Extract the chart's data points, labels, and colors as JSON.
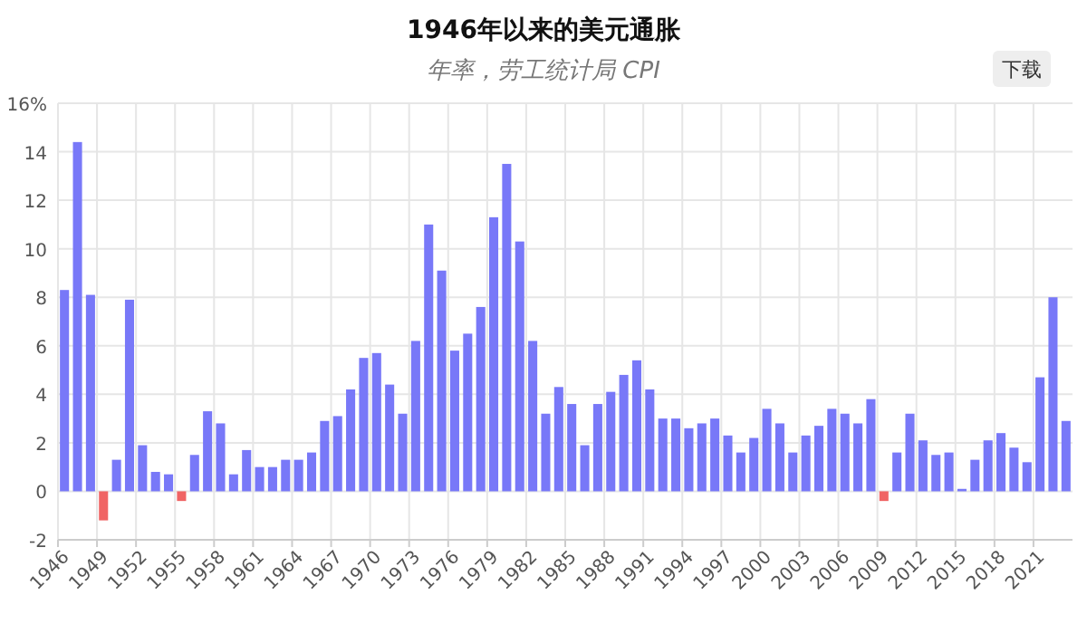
{
  "chart_data": {
    "type": "bar",
    "title": "1946年以来的美元通胀",
    "subtitle": "年率，劳工统计局 CPI",
    "annotations": [
      "下载"
    ],
    "categories": [
      "1946",
      null,
      null,
      "1949",
      null,
      null,
      "1952",
      null,
      null,
      "1955",
      null,
      null,
      "1958",
      null,
      null,
      "1961",
      null,
      null,
      "1964",
      null,
      null,
      "1967",
      null,
      null,
      "1970",
      null,
      null,
      "1973",
      null,
      null,
      "1976",
      null,
      null,
      "1979",
      null,
      null,
      "1982",
      null,
      null,
      "1985",
      null,
      null,
      "1988",
      null,
      null,
      "1991",
      null,
      null,
      "1994",
      null,
      null,
      "1997",
      null,
      null,
      "2000",
      null,
      null,
      "2003",
      null,
      null,
      "2006",
      null,
      null,
      "2009",
      null,
      null,
      "2012",
      null,
      null,
      "2015",
      null,
      null,
      "2018",
      null,
      null,
      "2021",
      null,
      null
    ],
    "values": [
      8.3,
      14.4,
      8.1,
      -1.2,
      1.3,
      7.9,
      1.9,
      0.8,
      0.7,
      -0.4,
      1.5,
      3.3,
      2.8,
      0.7,
      1.7,
      1.0,
      1.0,
      1.3,
      1.3,
      1.6,
      2.9,
      3.1,
      4.2,
      5.5,
      5.7,
      4.4,
      3.2,
      6.2,
      11.0,
      9.1,
      5.8,
      6.5,
      7.6,
      11.3,
      13.5,
      10.3,
      6.2,
      3.2,
      4.3,
      3.6,
      1.9,
      3.6,
      4.1,
      4.8,
      5.4,
      4.2,
      3.0,
      3.0,
      2.6,
      2.8,
      3.0,
      2.3,
      1.6,
      2.2,
      3.4,
      2.8,
      1.6,
      2.3,
      2.7,
      3.4,
      3.2,
      2.8,
      3.8,
      -0.4,
      1.6,
      3.2,
      2.1,
      1.5,
      1.6,
      0.1,
      1.3,
      2.1,
      2.4,
      1.8,
      1.2,
      4.7,
      8.0,
      2.9
    ],
    "colors": [
      "#7878f8",
      "#7878f8",
      "#7878f8",
      "#f06464",
      "#7878f8",
      "#7878f8",
      "#7878f8",
      "#7878f8",
      "#7878f8",
      "#f06464",
      "#7878f8",
      "#7878f8",
      "#7878f8",
      "#7878f8",
      "#7878f8",
      "#7878f8",
      "#7878f8",
      "#7878f8",
      "#7878f8",
      "#7878f8",
      "#7878f8",
      "#7878f8",
      "#7878f8",
      "#7878f8",
      "#7878f8",
      "#7878f8",
      "#7878f8",
      "#7878f8",
      "#7878f8",
      "#7878f8",
      "#7878f8",
      "#7878f8",
      "#7878f8",
      "#7878f8",
      "#7878f8",
      "#7878f8",
      "#7878f8",
      "#7878f8",
      "#7878f8",
      "#7878f8",
      "#7878f8",
      "#7878f8",
      "#7878f8",
      "#7878f8",
      "#7878f8",
      "#7878f8",
      "#7878f8",
      "#7878f8",
      "#7878f8",
      "#7878f8",
      "#7878f8",
      "#7878f8",
      "#7878f8",
      "#7878f8",
      "#7878f8",
      "#7878f8",
      "#7878f8",
      "#7878f8",
      "#7878f8",
      "#7878f8",
      "#7878f8",
      "#7878f8",
      "#7878f8",
      "#f06464",
      "#7878f8",
      "#7878f8",
      "#7878f8",
      "#7878f8",
      "#7878f8",
      "#7878f8",
      "#7878f8",
      "#7878f8",
      "#7878f8",
      "#7878f8",
      "#7878f8",
      "#7878f8",
      "#7878f8",
      "#7878f8"
    ],
    "ylim": [
      -2,
      16
    ],
    "yticks": [
      -2,
      0,
      2,
      4,
      6,
      8,
      10,
      12,
      14,
      {
        "value": 16,
        "label": "16%"
      }
    ],
    "grid": true
  }
}
